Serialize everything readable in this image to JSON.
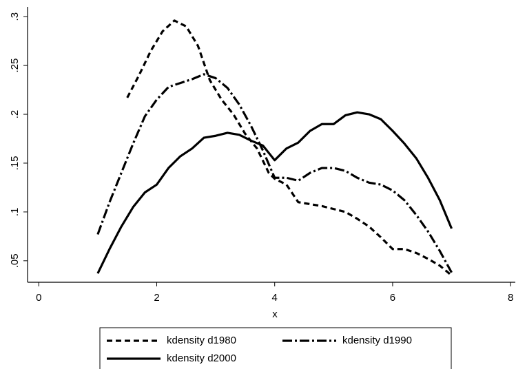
{
  "chart_data": {
    "type": "line",
    "xlabel": "x",
    "xlim": [
      -0.19,
      8.08
    ],
    "xticks": [
      0,
      2,
      4,
      6,
      8
    ],
    "ylim": [
      0.028,
      0.31
    ],
    "yticks": [
      {
        "value": 0.05,
        "label": ".05"
      },
      {
        "value": 0.1,
        "label": ".1"
      },
      {
        "value": 0.15,
        "label": ".15"
      },
      {
        "value": 0.2,
        "label": ".2"
      },
      {
        "value": 0.25,
        "label": ".25"
      },
      {
        "value": 0.3,
        "label": ".3"
      }
    ],
    "grid": false,
    "legend": "bottom",
    "series": [
      {
        "name": "kdensity d1980",
        "color": "#000000",
        "dash": "8,5",
        "x": [
          1.5,
          1.7,
          1.9,
          2.1,
          2.3,
          2.5,
          2.7,
          2.9,
          3.1,
          3.3,
          3.5,
          3.7,
          3.9,
          4.0,
          4.2,
          4.4,
          4.6,
          4.8,
          5.0,
          5.2,
          5.4,
          5.6,
          5.8,
          6.0,
          6.2,
          6.4,
          6.6,
          6.8,
          7.0
        ],
        "values": [
          0.217,
          0.24,
          0.265,
          0.285,
          0.296,
          0.29,
          0.27,
          0.235,
          0.215,
          0.2,
          0.18,
          0.165,
          0.14,
          0.134,
          0.128,
          0.11,
          0.108,
          0.106,
          0.103,
          0.1,
          0.093,
          0.085,
          0.074,
          0.062,
          0.062,
          0.058,
          0.052,
          0.045,
          0.035
        ]
      },
      {
        "name": "kdensity d1990",
        "color": "#000000",
        "dash": "14,4,3,4",
        "x": [
          1.0,
          1.2,
          1.4,
          1.6,
          1.8,
          2.0,
          2.2,
          2.4,
          2.6,
          2.8,
          3.0,
          3.2,
          3.4,
          3.6,
          3.8,
          4.0,
          4.2,
          4.4,
          4.6,
          4.8,
          5.0,
          5.2,
          5.4,
          5.6,
          5.8,
          6.0,
          6.2,
          6.4,
          6.6,
          6.8,
          7.0
        ],
        "values": [
          0.077,
          0.11,
          0.14,
          0.17,
          0.198,
          0.215,
          0.228,
          0.232,
          0.236,
          0.241,
          0.237,
          0.227,
          0.21,
          0.188,
          0.163,
          0.135,
          0.135,
          0.132,
          0.14,
          0.145,
          0.145,
          0.142,
          0.135,
          0.13,
          0.128,
          0.122,
          0.112,
          0.097,
          0.08,
          0.06,
          0.038
        ]
      },
      {
        "name": "kdensity d2000",
        "color": "#000000",
        "dash": "none",
        "x": [
          1.0,
          1.2,
          1.4,
          1.6,
          1.8,
          2.0,
          2.2,
          2.4,
          2.6,
          2.8,
          3.0,
          3.2,
          3.4,
          3.6,
          3.8,
          4.0,
          4.2,
          4.4,
          4.6,
          4.8,
          5.0,
          5.2,
          5.4,
          5.6,
          5.8,
          6.0,
          6.2,
          6.4,
          6.6,
          6.8,
          7.0
        ],
        "values": [
          0.037,
          0.062,
          0.085,
          0.105,
          0.12,
          0.128,
          0.145,
          0.157,
          0.165,
          0.176,
          0.178,
          0.181,
          0.179,
          0.173,
          0.168,
          0.153,
          0.165,
          0.171,
          0.183,
          0.19,
          0.19,
          0.199,
          0.202,
          0.2,
          0.195,
          0.183,
          0.17,
          0.155,
          0.135,
          0.112,
          0.083
        ]
      }
    ]
  }
}
